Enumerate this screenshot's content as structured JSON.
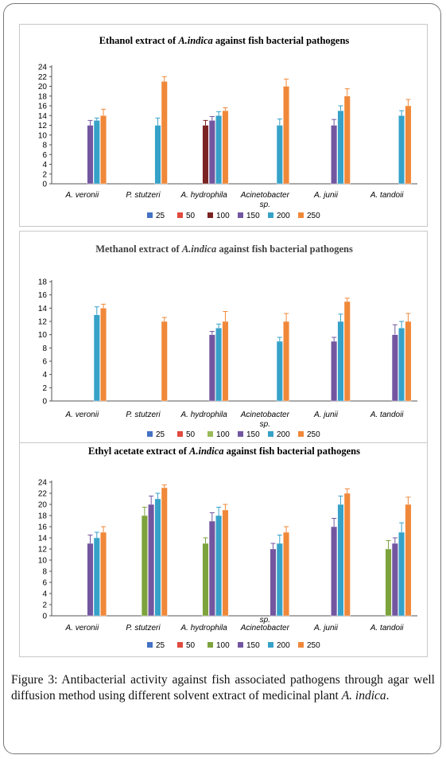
{
  "chart_data": [
    {
      "type": "bar",
      "title_prefix": "Ethanol extract of ",
      "title_species": "A.indica",
      "title_suffix": " against fish bacterial pathogens",
      "categories": [
        "A. veronii",
        "P. stutzeri",
        "A. hydrophila",
        "Acinetobacter sp.",
        "A. junii",
        "A. tandoii"
      ],
      "yticks": [
        "0",
        "2",
        "4",
        "6",
        "8",
        "10",
        "12",
        "14",
        "16",
        "18",
        "20",
        "22",
        "24"
      ],
      "ylim": [
        0,
        24
      ],
      "series": [
        {
          "name": "25",
          "color": "#4472c4",
          "values": [
            0,
            0,
            0,
            0,
            0,
            0
          ],
          "errors": [
            0,
            0,
            0,
            0,
            0,
            0
          ]
        },
        {
          "name": "50",
          "color": "#e04a3f",
          "values": [
            0,
            0,
            0,
            0,
            0,
            0
          ],
          "errors": [
            0,
            0,
            0,
            0,
            0,
            0
          ]
        },
        {
          "name": "100",
          "color": "#7b2323",
          "values": [
            0,
            0,
            12,
            0,
            0,
            0
          ],
          "errors": [
            0,
            0,
            1,
            0,
            0,
            0
          ]
        },
        {
          "name": "150",
          "color": "#7356a0",
          "values": [
            12,
            0,
            13,
            0,
            12,
            0
          ],
          "errors": [
            1,
            0,
            0.8,
            0,
            1.2,
            0
          ]
        },
        {
          "name": "200",
          "color": "#36a2c8",
          "values": [
            13,
            12,
            14,
            12,
            15,
            14
          ],
          "errors": [
            0.5,
            1.5,
            0.8,
            1.3,
            1,
            1
          ]
        },
        {
          "name": "250",
          "color": "#f0883a",
          "values": [
            14,
            21,
            15,
            20,
            18,
            16
          ],
          "errors": [
            1.3,
            1,
            0.6,
            1.5,
            1.5,
            1.3
          ]
        }
      ],
      "grid": false,
      "legend": "bottom"
    },
    {
      "type": "bar",
      "title_prefix": "Methanol extract of ",
      "title_species": "A.indica",
      "title_suffix": " against fish bacterial pathogens",
      "categories": [
        "A. veronii",
        "P. stutzeri",
        "A. hydrophila",
        "Acinetobacter sp.",
        "A. junii",
        "A. tandoii"
      ],
      "yticks": [
        "0",
        "2",
        "4",
        "6",
        "8",
        "10",
        "12",
        "14",
        "16",
        "18"
      ],
      "ylim": [
        0,
        18
      ],
      "series": [
        {
          "name": "25",
          "color": "#4472c4",
          "values": [
            0,
            0,
            0,
            0,
            0,
            0
          ],
          "errors": [
            0,
            0,
            0,
            0,
            0,
            0
          ]
        },
        {
          "name": "50",
          "color": "#e04a3f",
          "values": [
            0,
            0,
            0,
            0,
            0,
            0
          ],
          "errors": [
            0,
            0,
            0,
            0,
            0,
            0
          ]
        },
        {
          "name": "100",
          "color": "#9bbb59",
          "values": [
            0,
            0,
            0,
            0,
            0,
            0
          ],
          "errors": [
            0,
            0,
            0,
            0,
            0,
            0
          ]
        },
        {
          "name": "150",
          "color": "#7356a0",
          "values": [
            0,
            0,
            10,
            0,
            9,
            10
          ],
          "errors": [
            0,
            0,
            0.5,
            0,
            0.6,
            1.5
          ]
        },
        {
          "name": "200",
          "color": "#36a2c8",
          "values": [
            13,
            0,
            11,
            9,
            12,
            11
          ],
          "errors": [
            1.2,
            0,
            0.6,
            0.6,
            1.1,
            1
          ]
        },
        {
          "name": "250",
          "color": "#f0883a",
          "values": [
            14,
            12,
            12,
            12,
            15,
            12
          ],
          "errors": [
            0.6,
            0.6,
            1.5,
            1.2,
            0.5,
            1.2
          ]
        }
      ],
      "grid": false,
      "legend": "bottom"
    },
    {
      "type": "bar",
      "title_prefix": "Ethyl acetate extract of ",
      "title_species": "A.indica",
      "title_suffix": " against fish bacterial pathogens",
      "categories": [
        "A. veronii",
        "P. stutzeri",
        "A. hydrophila",
        "Acinetobacter sp.",
        "A. junii",
        "A. tandoii"
      ],
      "yticks": [
        "0",
        "2",
        "4",
        "6",
        "8",
        "10",
        "12",
        "14",
        "16",
        "18",
        "20",
        "22",
        "24"
      ],
      "ylim": [
        0,
        24
      ],
      "series": [
        {
          "name": "25",
          "color": "#4472c4",
          "values": [
            0,
            0,
            0,
            0,
            0,
            0
          ],
          "errors": [
            0,
            0,
            0,
            0,
            0,
            0
          ]
        },
        {
          "name": "50",
          "color": "#e04a3f",
          "values": [
            0,
            0,
            0,
            0,
            0,
            0
          ],
          "errors": [
            0,
            0,
            0,
            0,
            0,
            0
          ]
        },
        {
          "name": "100",
          "color": "#7da33d",
          "values": [
            0,
            18,
            13,
            0,
            0,
            12
          ],
          "errors": [
            0,
            1.5,
            1,
            0,
            0,
            1.5
          ]
        },
        {
          "name": "150",
          "color": "#7356a0",
          "values": [
            13,
            20,
            17,
            12,
            16,
            13
          ],
          "errors": [
            1.5,
            1.5,
            1.5,
            1,
            1.5,
            1
          ]
        },
        {
          "name": "200",
          "color": "#36a2c8",
          "values": [
            14,
            21,
            18,
            13,
            20,
            15
          ],
          "errors": [
            1,
            1,
            1.5,
            1.5,
            1.5,
            1.7
          ]
        },
        {
          "name": "250",
          "color": "#f0883a",
          "values": [
            15,
            23,
            19,
            15,
            22,
            20
          ],
          "errors": [
            1,
            0.5,
            1,
            1,
            0.8,
            1.3
          ]
        }
      ],
      "grid": false,
      "legend": "bottom"
    }
  ],
  "caption": {
    "label": "Figure 3:",
    "text": " Antibacterial activity against fish associated pathogens through agar well diffusion method using different solvent extract of medicinal plant ",
    "species": "A. indica",
    "end": "."
  }
}
